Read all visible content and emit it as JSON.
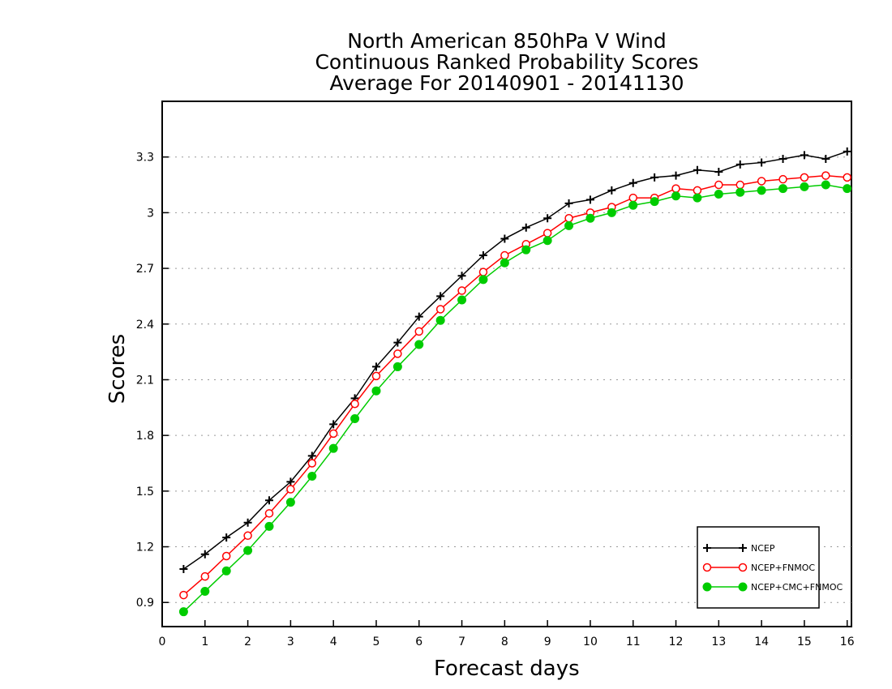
{
  "chart_data": {
    "type": "line",
    "title_lines": [
      "North American 850hPa V Wind",
      "Continuous Ranked Probability Scores",
      "Average For 20140901 - 20141130"
    ],
    "xlabel": "Forecast days",
    "ylabel": "Scores",
    "xlim": [
      0,
      16.1
    ],
    "ylim": [
      0.77,
      3.6
    ],
    "xticks": [
      "0",
      "1",
      "2",
      "3",
      "4",
      "5",
      "6",
      "7",
      "8",
      "9",
      "10",
      "11",
      "12",
      "13",
      "14",
      "15",
      "16"
    ],
    "yticks": [
      "0.9",
      "1.2",
      "1.5",
      "1.8",
      "2.1",
      "2.4",
      "2.7",
      "3",
      "3.3"
    ],
    "grid": "horizontal dotted",
    "legend_position": "bottom-right",
    "x": [
      0.5,
      1,
      1.5,
      2,
      2.5,
      3,
      3.5,
      4,
      4.5,
      5,
      5.5,
      6,
      6.5,
      7,
      7.5,
      8,
      8.5,
      9,
      9.5,
      10,
      10.5,
      11,
      11.5,
      12,
      12.5,
      13,
      13.5,
      14,
      14.5,
      15,
      15.5,
      16
    ],
    "series": [
      {
        "name": "NCEP",
        "color": "#000000",
        "marker": "plus",
        "values": [
          1.08,
          1.16,
          1.25,
          1.33,
          1.45,
          1.55,
          1.69,
          1.86,
          2.0,
          2.17,
          2.3,
          2.44,
          2.55,
          2.66,
          2.77,
          2.86,
          2.92,
          2.97,
          3.05,
          3.07,
          3.12,
          3.16,
          3.19,
          3.2,
          3.23,
          3.22,
          3.26,
          3.27,
          3.29,
          3.31,
          3.29,
          3.33
        ]
      },
      {
        "name": "NCEP+FNMOC",
        "color": "#ff0000",
        "marker": "open-circle",
        "values": [
          0.94,
          1.04,
          1.15,
          1.26,
          1.38,
          1.51,
          1.65,
          1.81,
          1.97,
          2.12,
          2.24,
          2.36,
          2.48,
          2.58,
          2.68,
          2.77,
          2.83,
          2.89,
          2.97,
          3.0,
          3.03,
          3.08,
          3.08,
          3.13,
          3.12,
          3.15,
          3.15,
          3.17,
          3.18,
          3.19,
          3.2,
          3.19
        ]
      },
      {
        "name": "NCEP+CMC+FNMOC",
        "color": "#00cc00",
        "marker": "filled-circle",
        "values": [
          0.85,
          0.96,
          1.07,
          1.18,
          1.31,
          1.44,
          1.58,
          1.73,
          1.89,
          2.04,
          2.17,
          2.29,
          2.42,
          2.53,
          2.64,
          2.73,
          2.8,
          2.85,
          2.93,
          2.97,
          3.0,
          3.04,
          3.06,
          3.09,
          3.08,
          3.1,
          3.11,
          3.12,
          3.13,
          3.14,
          3.15,
          3.13
        ]
      }
    ]
  }
}
